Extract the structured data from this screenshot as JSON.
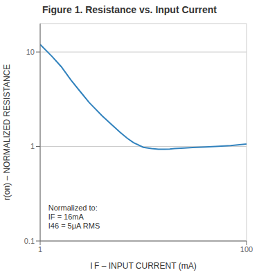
{
  "chart_data": {
    "type": "line",
    "title": "Figure 1. Resistance vs. Input Current",
    "x_label": "I F – INPUT CURRENT (mA)",
    "y_label": "r(on) – NORMALIZED RESISTANCE",
    "x": [
      1.0,
      1.3,
      1.6,
      2.0,
      2.5,
      3.0,
      4.0,
      5.0,
      6.0,
      7.0,
      8.0,
      10.0,
      12.0,
      14.0,
      16.0,
      18.0,
      20.0,
      25.0,
      30.0,
      40.0,
      50.0,
      70.0,
      100.0
    ],
    "values": [
      12.0,
      9.0,
      7.0,
      5.0,
      3.7,
      2.9,
      2.1,
      1.68,
      1.4,
      1.22,
      1.1,
      0.98,
      0.95,
      0.935,
      0.935,
      0.94,
      0.95,
      0.965,
      0.975,
      0.988,
      1.0,
      1.02,
      1.06
    ],
    "xlim": [
      1,
      100
    ],
    "ylim": [
      0.1,
      20
    ],
    "xticks": [
      1,
      100
    ],
    "yticks": [
      0.1,
      1,
      10
    ],
    "log": true,
    "grid": true,
    "annotations": [
      {
        "text": [
          "Normalized to:",
          "IF = 16mA",
          "I46 = 5μA RMS"
        ],
        "x": 1.2,
        "y": 0.13
      }
    ]
  }
}
